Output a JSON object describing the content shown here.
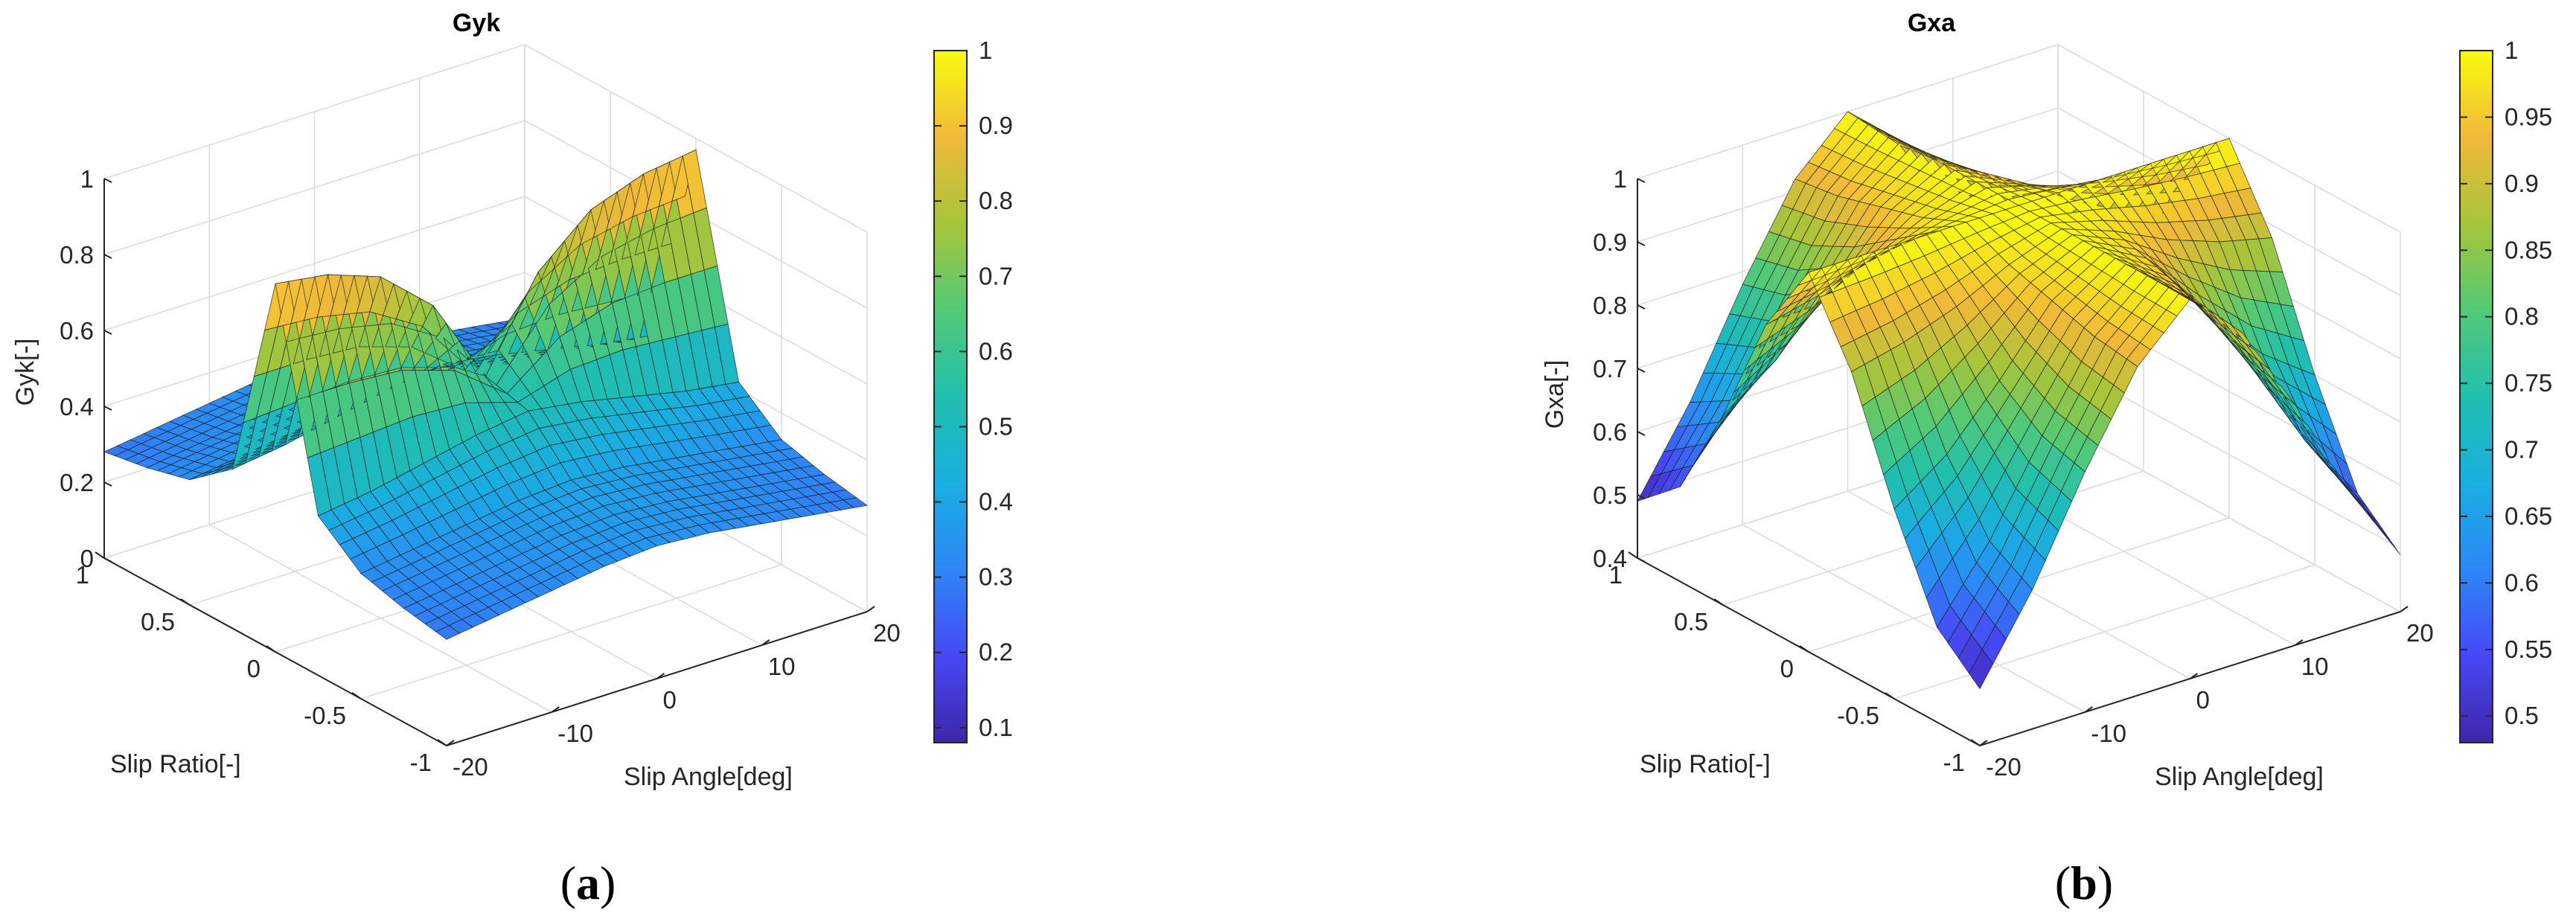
{
  "panels": [
    {
      "caption": {
        "letter": "a"
      },
      "chart_data": {
        "type": "surface",
        "title": "Gyk",
        "xlabel": "Slip Angle[deg]",
        "ylabel": "Slip Ratio[-]",
        "zlabel": "Gyk[-]",
        "xlim": [
          -20,
          20
        ],
        "ylim": [
          -1,
          1
        ],
        "zlim": [
          0,
          1
        ],
        "x_ticks": [
          "-20",
          "-10",
          "0",
          "10",
          "20"
        ],
        "y_ticks": [
          "-1",
          "-0.5",
          "0",
          "0.5",
          "1"
        ],
        "z_ticks": [
          "0",
          "0.2",
          "0.4",
          "0.6",
          "0.8",
          "1"
        ],
        "grid": true,
        "colormap": "parula",
        "colorbar": {
          "range": [
            0.08,
            1
          ],
          "ticks": [
            "0.1",
            "0.2",
            "0.3",
            "0.4",
            "0.5",
            "0.6",
            "0.7",
            "0.8",
            "0.9",
            "1"
          ]
        },
        "slip_angle_deg": [
          -20,
          -15,
          -10,
          -5,
          0,
          5,
          10,
          15,
          20
        ],
        "slip_ratio": [
          -1,
          -0.75,
          -0.5,
          -0.25,
          0,
          0.25,
          0.5,
          0.75,
          1
        ],
        "z": [
          [
            0.28,
            0.3,
            0.32,
            0.34,
            0.35,
            0.34,
            0.32,
            0.3,
            0.28
          ],
          [
            0.3,
            0.32,
            0.34,
            0.36,
            0.37,
            0.36,
            0.34,
            0.32,
            0.3
          ],
          [
            0.33,
            0.35,
            0.37,
            0.39,
            0.4,
            0.39,
            0.37,
            0.35,
            0.33
          ],
          [
            0.42,
            0.44,
            0.47,
            0.5,
            0.52,
            0.5,
            0.47,
            0.44,
            0.42
          ],
          [
            0.97,
            0.95,
            0.9,
            0.78,
            0.55,
            0.78,
            0.9,
            0.95,
            0.97
          ],
          [
            0.42,
            0.44,
            0.47,
            0.5,
            0.52,
            0.5,
            0.47,
            0.44,
            0.42
          ],
          [
            0.33,
            0.35,
            0.37,
            0.39,
            0.4,
            0.39,
            0.37,
            0.35,
            0.33
          ],
          [
            0.3,
            0.32,
            0.34,
            0.36,
            0.37,
            0.36,
            0.34,
            0.32,
            0.3
          ],
          [
            0.28,
            0.3,
            0.32,
            0.34,
            0.35,
            0.34,
            0.32,
            0.3,
            0.28
          ]
        ]
      }
    },
    {
      "caption": {
        "letter": "b"
      },
      "chart_data": {
        "type": "surface",
        "title": "Gxa",
        "xlabel": "Slip Angle[deg]",
        "ylabel": "Slip Ratio[-]",
        "zlabel": "Gxa[-]",
        "xlim": [
          -20,
          20
        ],
        "ylim": [
          -1,
          1
        ],
        "zlim": [
          0.4,
          1
        ],
        "x_ticks": [
          "-20",
          "-10",
          "0",
          "10",
          "20"
        ],
        "y_ticks": [
          "-1",
          "-0.5",
          "0",
          "0.5",
          "1"
        ],
        "z_ticks": [
          "0.4",
          "0.5",
          "0.6",
          "0.7",
          "0.8",
          "0.9",
          "1"
        ],
        "grid": true,
        "colormap": "parula",
        "colorbar": {
          "range": [
            0.48,
            1
          ],
          "ticks": [
            "0.5",
            "0.55",
            "0.6",
            "0.65",
            "0.7",
            "0.75",
            "0.8",
            "0.85",
            "0.9",
            "0.95",
            "1"
          ]
        },
        "slip_angle_deg": [
          -20,
          -15,
          -10,
          -5,
          0,
          5,
          10,
          15,
          20
        ],
        "slip_ratio": [
          -1,
          -0.75,
          -0.5,
          -0.25,
          0,
          0.25,
          0.5,
          0.75,
          1
        ],
        "z": [
          [
            0.49,
            0.62,
            0.78,
            0.92,
            1.0,
            0.92,
            0.78,
            0.62,
            0.49
          ],
          [
            0.55,
            0.66,
            0.8,
            0.93,
            1.0,
            0.93,
            0.8,
            0.66,
            0.55
          ],
          [
            0.7,
            0.76,
            0.85,
            0.95,
            1.0,
            0.95,
            0.85,
            0.76,
            0.7
          ],
          [
            0.88,
            0.9,
            0.93,
            0.97,
            1.0,
            0.97,
            0.93,
            0.9,
            0.88
          ],
          [
            1.0,
            1.0,
            1.0,
            1.0,
            1.0,
            1.0,
            1.0,
            1.0,
            1.0
          ],
          [
            0.88,
            0.9,
            0.93,
            0.97,
            1.0,
            0.97,
            0.93,
            0.9,
            0.88
          ],
          [
            0.7,
            0.76,
            0.85,
            0.95,
            1.0,
            0.95,
            0.85,
            0.76,
            0.7
          ],
          [
            0.55,
            0.66,
            0.8,
            0.93,
            1.0,
            0.93,
            0.8,
            0.66,
            0.55
          ],
          [
            0.49,
            0.62,
            0.78,
            0.92,
            1.0,
            0.92,
            0.78,
            0.62,
            0.49
          ]
        ]
      }
    }
  ]
}
